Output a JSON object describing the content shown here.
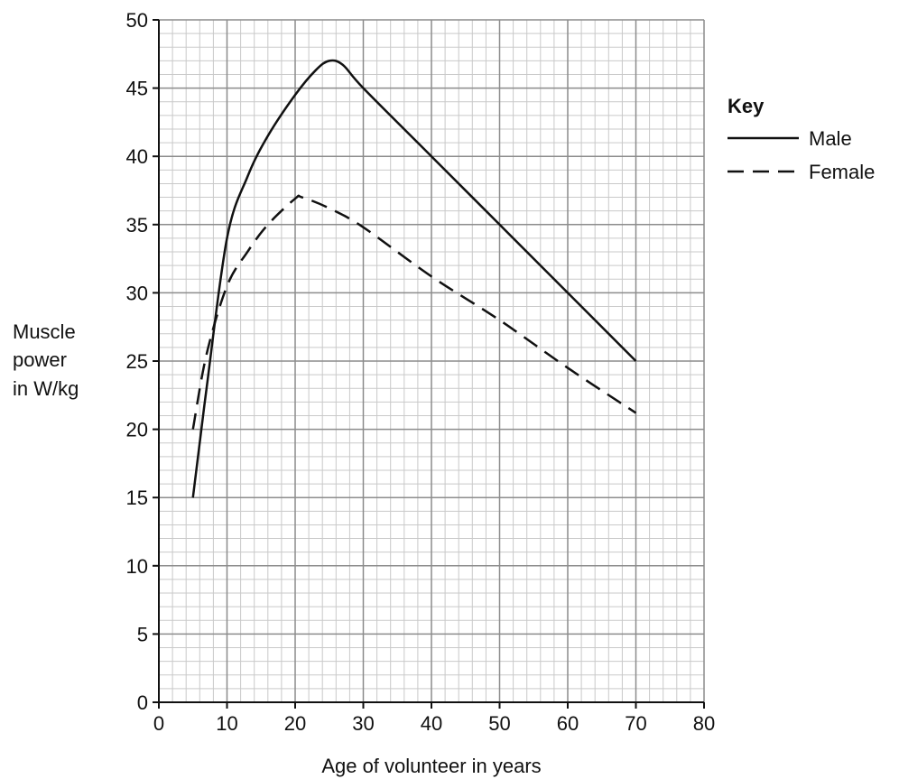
{
  "chart_data": {
    "type": "line",
    "title": "",
    "xlabel": "Age of volunteer in years",
    "ylabel": [
      "Muscle",
      "power",
      "in W/kg"
    ],
    "xlim": [
      0,
      80
    ],
    "ylim": [
      0,
      50
    ],
    "xticks": [
      "0",
      "10",
      "20",
      "30",
      "40",
      "50",
      "60",
      "70",
      "80"
    ],
    "yticks": [
      "0",
      "5",
      "10",
      "15",
      "20",
      "25",
      "30",
      "35",
      "40",
      "45",
      "50"
    ],
    "grid": true,
    "legend": {
      "title": "Key",
      "placement": "right"
    },
    "series": [
      {
        "name": "Male",
        "style": "solid",
        "x": [
          5,
          7,
          10,
          13,
          16,
          20,
          23,
          25,
          27,
          30,
          40,
          50,
          60,
          70
        ],
        "y": [
          15,
          23,
          34,
          38.5,
          41.5,
          44.5,
          46.3,
          47,
          46.7,
          45,
          40,
          35,
          30,
          25
        ]
      },
      {
        "name": "Female",
        "style": "dashed",
        "x": [
          5,
          7,
          10,
          13,
          16,
          20,
          21,
          25,
          30,
          40,
          50,
          60,
          70
        ],
        "y": [
          20,
          25.5,
          30.5,
          33,
          35,
          36.9,
          37,
          36.2,
          34.8,
          31.2,
          28,
          24.5,
          21.2
        ]
      }
    ]
  }
}
